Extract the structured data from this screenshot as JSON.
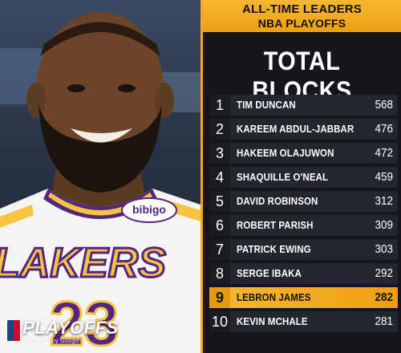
{
  "header": {
    "line1": "ALL-TIME LEADERS",
    "line2": "NBA PLAYOFFS"
  },
  "title": "TOTAL BLOCKS",
  "leaders": [
    {
      "rank": "1",
      "name": "TIM DUNCAN",
      "value": "568"
    },
    {
      "rank": "2",
      "name": "KAREEM ABDUL-JABBAR",
      "value": "476"
    },
    {
      "rank": "3",
      "name": "HAKEEM OLAJUWON",
      "value": "472"
    },
    {
      "rank": "4",
      "name": "SHAQUILLE O'NEAL",
      "value": "459"
    },
    {
      "rank": "5",
      "name": "DAVID ROBINSON",
      "value": "312"
    },
    {
      "rank": "6",
      "name": "ROBERT PARISH",
      "value": "309"
    },
    {
      "rank": "7",
      "name": "PATRICK EWING",
      "value": "303"
    },
    {
      "rank": "8",
      "name": "SERGE IBAKA",
      "value": "292"
    },
    {
      "rank": "9",
      "name": "LEBRON JAMES",
      "value": "282",
      "highlighted": true
    },
    {
      "rank": "10",
      "name": "KEVIN MCHALE",
      "value": "281"
    }
  ],
  "jersey": {
    "team_text": "LAKERS",
    "number": "23",
    "sponsor": "bibigo"
  },
  "brand": {
    "text": "PLAYOFFS",
    "sub": "Presented by Google"
  },
  "colors": {
    "accent": "#f2a81d",
    "panel": "#14161b",
    "row": "#23262d",
    "jersey_gold": "#f5c540",
    "jersey_purple": "#552583"
  }
}
